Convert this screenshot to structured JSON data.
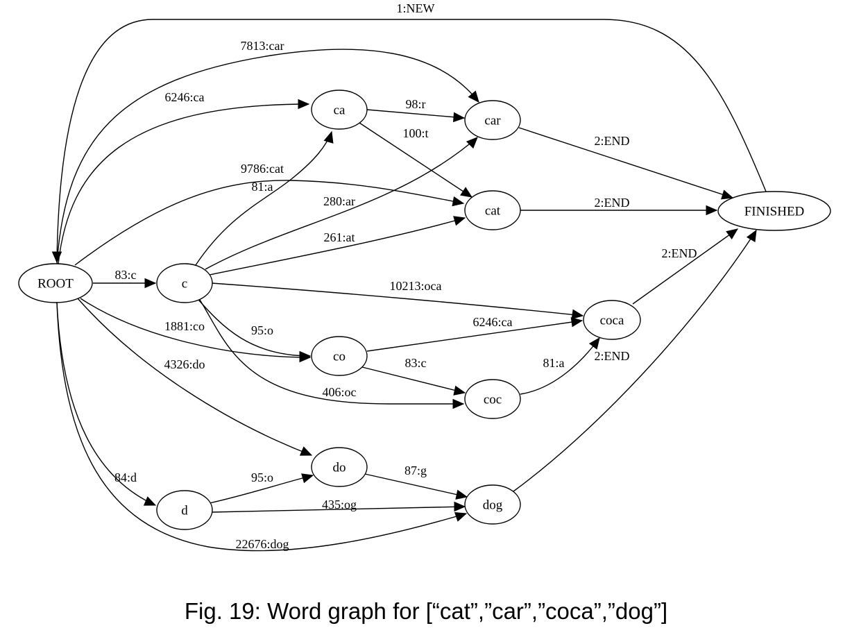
{
  "diagram": {
    "nodes": [
      {
        "id": "ROOT",
        "label": "ROOT"
      },
      {
        "id": "c",
        "label": "c"
      },
      {
        "id": "d",
        "label": "d"
      },
      {
        "id": "ca",
        "label": "ca"
      },
      {
        "id": "car",
        "label": "car"
      },
      {
        "id": "cat",
        "label": "cat"
      },
      {
        "id": "co",
        "label": "co"
      },
      {
        "id": "coc",
        "label": "coc"
      },
      {
        "id": "coca",
        "label": "coca"
      },
      {
        "id": "do",
        "label": "do"
      },
      {
        "id": "dog",
        "label": "dog"
      },
      {
        "id": "FINISHED",
        "label": "FINISHED"
      }
    ],
    "edges": [
      {
        "id": "e-new",
        "from": "FINISHED",
        "to": "ROOT",
        "label": "1:NEW"
      },
      {
        "id": "e-root-car",
        "from": "ROOT",
        "to": "car",
        "label": "7813:car"
      },
      {
        "id": "e-root-ca",
        "from": "ROOT",
        "to": "ca",
        "label": "6246:ca"
      },
      {
        "id": "e-root-cat",
        "from": "ROOT",
        "to": "cat",
        "label": "9786:cat"
      },
      {
        "id": "e-root-c",
        "from": "ROOT",
        "to": "c",
        "label": "83:c"
      },
      {
        "id": "e-root-co",
        "from": "ROOT",
        "to": "co",
        "label": "1881:co"
      },
      {
        "id": "e-root-do",
        "from": "ROOT",
        "to": "do",
        "label": "4326:do"
      },
      {
        "id": "e-root-d",
        "from": "ROOT",
        "to": "d",
        "label": "84:d"
      },
      {
        "id": "e-root-dog",
        "from": "ROOT",
        "to": "dog",
        "label": "22676:dog"
      },
      {
        "id": "e-c-ca",
        "from": "c",
        "to": "ca",
        "label": "81:a"
      },
      {
        "id": "e-c-car",
        "from": "c",
        "to": "car",
        "label": "280:ar"
      },
      {
        "id": "e-c-cat",
        "from": "c",
        "to": "cat",
        "label": "261:at"
      },
      {
        "id": "e-c-coca",
        "from": "c",
        "to": "coca",
        "label": "10213:oca"
      },
      {
        "id": "e-c-co",
        "from": "c",
        "to": "co",
        "label": "95:o"
      },
      {
        "id": "e-c-coc",
        "from": "c",
        "to": "coc",
        "label": "406:oc"
      },
      {
        "id": "e-ca-car",
        "from": "ca",
        "to": "car",
        "label": "98:r"
      },
      {
        "id": "e-ca-cat",
        "from": "ca",
        "to": "cat",
        "label": "100:t"
      },
      {
        "id": "e-car-fin",
        "from": "car",
        "to": "FINISHED",
        "label": "2:END"
      },
      {
        "id": "e-cat-fin",
        "from": "cat",
        "to": "FINISHED",
        "label": "2:END"
      },
      {
        "id": "e-coca-fin",
        "from": "coca",
        "to": "FINISHED",
        "label": "2:END"
      },
      {
        "id": "e-co-coca",
        "from": "co",
        "to": "coca",
        "label": "6246:ca"
      },
      {
        "id": "e-co-coc",
        "from": "co",
        "to": "coc",
        "label": "83:c"
      },
      {
        "id": "e-coc-coca",
        "from": "coc",
        "to": "coca",
        "label": "81:a"
      },
      {
        "id": "e-dog-fin",
        "from": "dog",
        "to": "FINISHED",
        "label": "2:END"
      },
      {
        "id": "e-d-do",
        "from": "d",
        "to": "do",
        "label": "95:o"
      },
      {
        "id": "e-d-dog",
        "from": "d",
        "to": "dog",
        "label": "435:og"
      },
      {
        "id": "e-do-dog",
        "from": "do",
        "to": "dog",
        "label": "87:g"
      }
    ]
  },
  "caption": "Fig. 19: Word graph for [“cat”,”car”,”coca”,”dog”]"
}
